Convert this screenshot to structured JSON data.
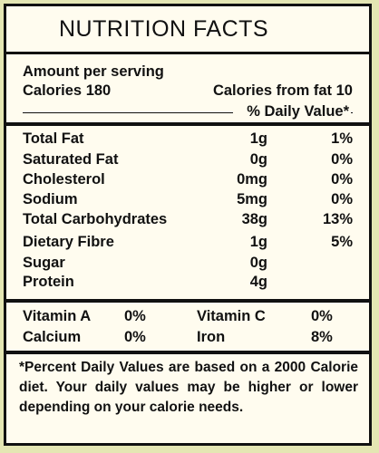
{
  "title": "NUTRITION FACTS",
  "serving": {
    "header": "Amount per serving",
    "calories": "Calories 180",
    "calories_fat": "Calories from fat 10",
    "dv_header": "% Daily Value*"
  },
  "nutrients": [
    {
      "name": "Total Fat",
      "amount": "1g",
      "dv": "1%"
    },
    {
      "name": "Saturated Fat",
      "amount": "0g",
      "dv": "0%"
    },
    {
      "name": "Cholesterol",
      "amount": "0mg",
      "dv": "0%"
    },
    {
      "name": "Sodium",
      "amount": "5mg",
      "dv": "0%"
    },
    {
      "name": "Total Carbohydrates",
      "amount": "38g",
      "dv": "13%"
    },
    {
      "name": "Dietary Fibre",
      "amount": "1g",
      "dv": "5%"
    },
    {
      "name": "Sugar",
      "amount": "0g",
      "dv": ""
    },
    {
      "name": "Protein",
      "amount": "4g",
      "dv": ""
    }
  ],
  "vitamins": [
    {
      "name": "Vitamin A",
      "dv": "0%"
    },
    {
      "name": "Vitamin C",
      "dv": "0%"
    },
    {
      "name": "Calcium",
      "dv": "0%"
    },
    {
      "name": "Iron",
      "dv": "8%"
    }
  ],
  "footnote": "*Percent Daily Values are based on a 2000 Calorie diet. Your daily values may be higher or lower depending on your calorie needs."
}
